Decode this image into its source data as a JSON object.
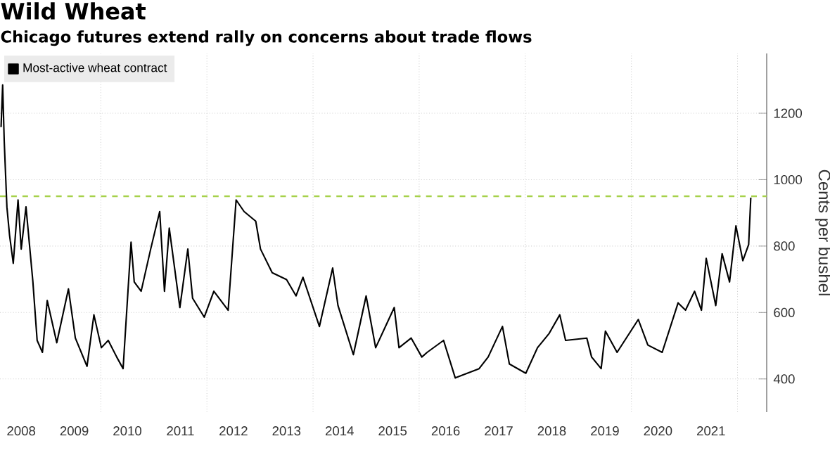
{
  "chart_data": {
    "type": "line",
    "title": "Wild Wheat",
    "subtitle": "Chicago futures extend rally on concerns about trade flows",
    "ylabel": "Cents per bushel",
    "x": [
      2008.12,
      2008.15,
      2008.18,
      2008.23,
      2008.28,
      2008.35,
      2008.44,
      2008.5,
      2008.59,
      2008.72,
      2008.8,
      2008.9,
      2008.99,
      2009.17,
      2009.39,
      2009.52,
      2009.74,
      2009.87,
      2010.01,
      2010.14,
      2010.3,
      2010.42,
      2010.57,
      2010.63,
      2010.76,
      2010.94,
      2011.11,
      2011.2,
      2011.29,
      2011.49,
      2011.64,
      2011.73,
      2011.95,
      2012.13,
      2012.4,
      2012.55,
      2012.7,
      2012.92,
      2013.01,
      2013.23,
      2013.5,
      2013.68,
      2013.81,
      2014.12,
      2014.37,
      2014.47,
      2014.76,
      2015.0,
      2015.18,
      2015.53,
      2015.62,
      2015.85,
      2016.05,
      2016.15,
      2016.46,
      2016.68,
      2017.13,
      2017.3,
      2017.57,
      2017.7,
      2018.01,
      2018.23,
      2018.45,
      2018.65,
      2018.76,
      2019.16,
      2019.25,
      2019.43,
      2019.51,
      2019.73,
      2020.13,
      2020.31,
      2020.58,
      2020.88,
      2021.02,
      2021.19,
      2021.32,
      2021.41,
      2021.59,
      2021.71,
      2021.85,
      2021.97,
      2022.1,
      2022.21,
      2022.25
    ],
    "series": [
      {
        "name": "Most-active wheat contract",
        "color": "#000000",
        "values": [
          1158,
          1285,
          1115,
          918,
          833,
          748,
          939,
          791,
          918,
          692,
          516,
          480,
          636,
          509,
          671,
          523,
          438,
          593,
          494,
          516,
          466,
          431,
          812,
          692,
          664,
          791,
          904,
          664,
          854,
          615,
          791,
          643,
          586,
          664,
          607,
          939,
          904,
          875,
          791,
          720,
          699,
          650,
          706,
          558,
          734,
          621,
          473,
          650,
          494,
          615,
          494,
          523,
          466,
          480,
          516,
          403,
          431,
          466,
          558,
          445,
          417,
          494,
          537,
          593,
          516,
          523,
          466,
          431,
          544,
          480,
          579,
          502,
          480,
          629,
          607,
          664,
          607,
          763,
          621,
          777,
          692,
          861,
          756,
          805,
          946
        ]
      }
    ],
    "xlim": [
      2008.1,
      2022.55
    ],
    "ylim": [
      300,
      1380
    ],
    "xticks": [
      {
        "value": 2008.5,
        "label": "2008"
      },
      {
        "value": 2009.5,
        "label": "2009"
      },
      {
        "value": 2010.5,
        "label": "2010"
      },
      {
        "value": 2011.5,
        "label": "2011"
      },
      {
        "value": 2012.5,
        "label": "2012"
      },
      {
        "value": 2013.5,
        "label": "2013"
      },
      {
        "value": 2014.5,
        "label": "2014"
      },
      {
        "value": 2015.5,
        "label": "2015"
      },
      {
        "value": 2016.5,
        "label": "2016"
      },
      {
        "value": 2017.5,
        "label": "2017"
      },
      {
        "value": 2018.5,
        "label": "2018"
      },
      {
        "value": 2019.5,
        "label": "2019"
      },
      {
        "value": 2020.5,
        "label": "2020"
      },
      {
        "value": 2021.5,
        "label": "2021"
      },
      {
        "value": 2010,
        "label": null
      },
      {
        "value": 2012,
        "label": null
      },
      {
        "value": 2014,
        "label": null
      },
      {
        "value": 2016,
        "label": null
      },
      {
        "value": 2018,
        "label": null
      },
      {
        "value": 2020,
        "label": null
      },
      {
        "value": 2022,
        "label": null
      }
    ],
    "yticks": [
      400,
      600,
      800,
      1000,
      1200
    ],
    "ref_lines": [
      {
        "axis": "y",
        "value": 950,
        "color": "#a6d14a",
        "line_style": "dashed"
      }
    ],
    "grid": true,
    "legend": "top left"
  }
}
